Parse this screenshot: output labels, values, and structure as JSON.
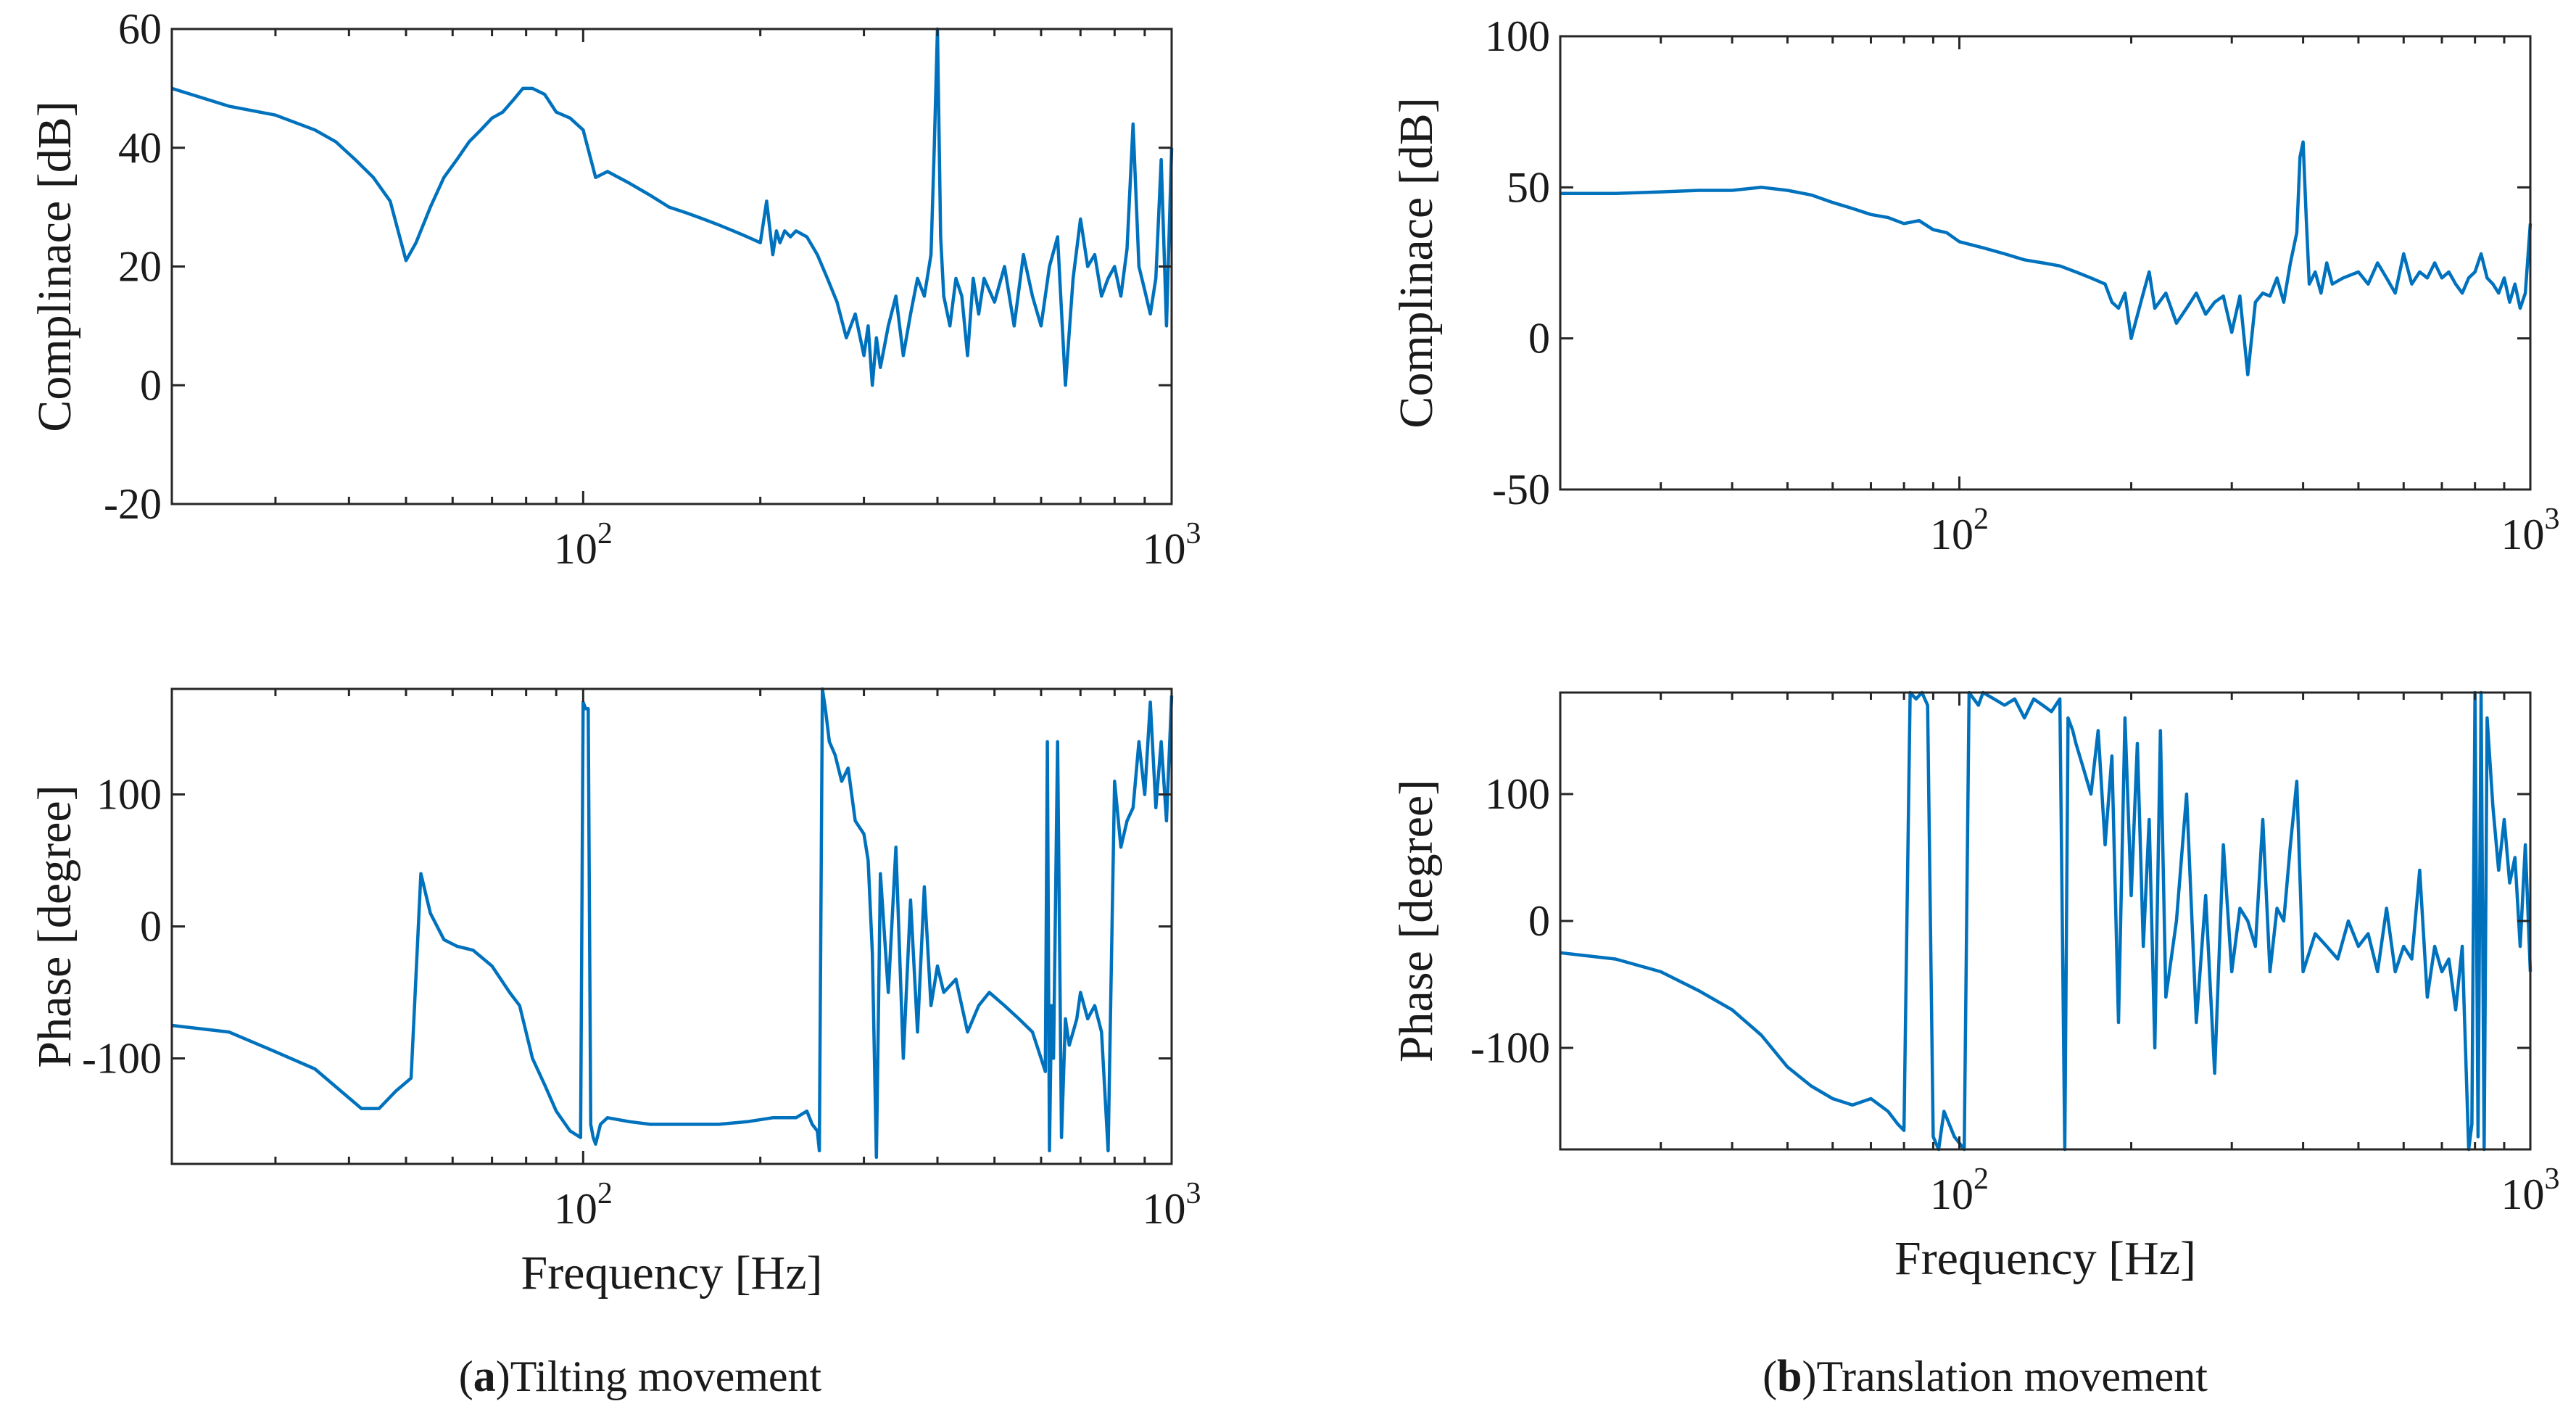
{
  "captions": [
    {
      "letter": "a",
      "text": "Tilting movement"
    },
    {
      "letter": "b",
      "text": "Translation movement"
    }
  ],
  "line_color": "#0072BD",
  "chart_data": [
    {
      "type": "line",
      "panel": "a",
      "row": "magnitude",
      "xscale": "log",
      "xlim": [
        20,
        1000
      ],
      "ylim": [
        -20,
        60
      ],
      "xlabel": "",
      "ylabel": "Complinace [dB]",
      "yticks": [
        -20,
        0,
        20,
        40,
        60
      ],
      "xticklabels": [
        {
          "base": "10",
          "exp": "2",
          "value": 100
        },
        {
          "base": "10",
          "exp": "3",
          "value": 1000
        }
      ],
      "series": [
        {
          "x": [
            20,
            25,
            30,
            35,
            38,
            41,
            44,
            47,
            50,
            52,
            55,
            58,
            61,
            64,
            67,
            70,
            73,
            76,
            79,
            82,
            86,
            90,
            95,
            100,
            105,
            110,
            120,
            130,
            140,
            150,
            160,
            170,
            180,
            190,
            200,
            205,
            210,
            213,
            216,
            220,
            225,
            230,
            240,
            250,
            260,
            270,
            280,
            290,
            300,
            305,
            310,
            315,
            320,
            330,
            340,
            350,
            360,
            370,
            380,
            390,
            395,
            400,
            405,
            410,
            420,
            430,
            440,
            450,
            460,
            470,
            480,
            500,
            520,
            540,
            560,
            580,
            600,
            620,
            640,
            660,
            680,
            700,
            720,
            740,
            760,
            780,
            800,
            820,
            840,
            860,
            880,
            900,
            920,
            940,
            960,
            980,
            1000
          ],
          "y": [
            50,
            47,
            45.5,
            43,
            41,
            38,
            35,
            31,
            21,
            24,
            30,
            35,
            38,
            41,
            43,
            45,
            46,
            48,
            50,
            50,
            49,
            46,
            45,
            43,
            35,
            36,
            34,
            32,
            30,
            29,
            28,
            27,
            26,
            25,
            24,
            31,
            22,
            26,
            24,
            26,
            25,
            26,
            25,
            22,
            18,
            14,
            8,
            12,
            5,
            10,
            0,
            8,
            3,
            10,
            15,
            5,
            12,
            18,
            15,
            22,
            40,
            60,
            25,
            15,
            10,
            18,
            15,
            5,
            18,
            12,
            18,
            14,
            20,
            10,
            22,
            15,
            10,
            20,
            25,
            0,
            18,
            28,
            20,
            22,
            15,
            18,
            20,
            15,
            23,
            44,
            20,
            16,
            12,
            18,
            38,
            10,
            40
          ]
        }
      ]
    },
    {
      "type": "line",
      "panel": "a",
      "row": "phase",
      "xscale": "log",
      "xlim": [
        20,
        1000
      ],
      "ylim": [
        -180,
        180
      ],
      "xlabel": "Frequency [Hz]",
      "ylabel": "Phase [degree]",
      "yticks": [
        -100,
        0,
        100
      ],
      "xticklabels": [
        {
          "base": "10",
          "exp": "2",
          "value": 100
        },
        {
          "base": "10",
          "exp": "3",
          "value": 1000
        }
      ],
      "series": [
        {
          "x": [
            20,
            25,
            30,
            35,
            40,
            42,
            45,
            48,
            51,
            53,
            55,
            58,
            61,
            65,
            70,
            75,
            78,
            82,
            86,
            90,
            95,
            99,
            100,
            101,
            102,
            103,
            104,
            105,
            107,
            110,
            120,
            130,
            150,
            170,
            190,
            210,
            230,
            240,
            245,
            250,
            252,
            255,
            258,
            262,
            268,
            275,
            282,
            290,
            300,
            305,
            310,
            315,
            320,
            330,
            340,
            350,
            360,
            370,
            380,
            390,
            400,
            410,
            430,
            450,
            470,
            490,
            520,
            550,
            580,
            600,
            610,
            615,
            620,
            625,
            630,
            640,
            650,
            660,
            670,
            680,
            690,
            700,
            720,
            740,
            760,
            780,
            800,
            820,
            840,
            860,
            880,
            900,
            920,
            940,
            960,
            980,
            1000
          ],
          "y": [
            -75,
            -80,
            -95,
            -108,
            -130,
            -138,
            -138,
            -125,
            -115,
            40,
            10,
            -10,
            -15,
            -18,
            -30,
            -50,
            -60,
            -100,
            -120,
            -140,
            -155,
            -160,
            170,
            165,
            165,
            -150,
            -160,
            -165,
            -150,
            -145,
            -148,
            -150,
            -150,
            -150,
            -148,
            -145,
            -145,
            -140,
            -150,
            -155,
            -170,
            180,
            165,
            140,
            130,
            110,
            120,
            80,
            70,
            50,
            -20,
            -175,
            40,
            -50,
            60,
            -100,
            20,
            -80,
            30,
            -60,
            -30,
            -50,
            -40,
            -80,
            -60,
            -50,
            -60,
            -70,
            -80,
            -100,
            -110,
            140,
            -170,
            -60,
            -100,
            140,
            -160,
            -70,
            -90,
            -80,
            -70,
            -50,
            -70,
            -60,
            -80,
            -170,
            110,
            60,
            80,
            90,
            140,
            100,
            170,
            90,
            140,
            80,
            175
          ]
        }
      ]
    },
    {
      "type": "line",
      "panel": "b",
      "row": "magnitude",
      "xscale": "log",
      "xlim": [
        20,
        1000
      ],
      "ylim": [
        -50,
        100
      ],
      "xlabel": "",
      "ylabel": "Complinace [dB]",
      "yticks": [
        -50,
        0,
        50,
        100
      ],
      "xticklabels": [
        {
          "base": "10",
          "exp": "2",
          "value": 100
        },
        {
          "base": "10",
          "exp": "3",
          "value": 1000
        }
      ],
      "series": [
        {
          "x": [
            20,
            25,
            30,
            35,
            40,
            45,
            50,
            55,
            60,
            65,
            70,
            75,
            80,
            85,
            90,
            95,
            100,
            110,
            120,
            130,
            140,
            150,
            160,
            170,
            180,
            185,
            190,
            195,
            200,
            210,
            215,
            220,
            230,
            240,
            250,
            260,
            270,
            280,
            290,
            300,
            310,
            320,
            330,
            340,
            350,
            360,
            370,
            380,
            390,
            395,
            400,
            405,
            410,
            420,
            430,
            440,
            450,
            470,
            500,
            520,
            540,
            560,
            580,
            600,
            620,
            640,
            660,
            680,
            700,
            720,
            740,
            760,
            780,
            800,
            820,
            840,
            860,
            880,
            900,
            920,
            940,
            960,
            980,
            1000
          ],
          "y": [
            48,
            48,
            48.5,
            49,
            49,
            50,
            49,
            47.5,
            45,
            43,
            41,
            40,
            38,
            39,
            36,
            35,
            32,
            30,
            28,
            26,
            25,
            24,
            22,
            20,
            18,
            12,
            10,
            15,
            0,
            15,
            22,
            10,
            15,
            5,
            10,
            15,
            8,
            12,
            14,
            2,
            14,
            -12,
            12,
            15,
            14,
            20,
            12,
            25,
            35,
            60,
            65,
            40,
            18,
            22,
            15,
            25,
            18,
            20,
            22,
            18,
            25,
            20,
            15,
            28,
            18,
            22,
            20,
            25,
            20,
            22,
            18,
            15,
            20,
            22,
            28,
            20,
            18,
            15,
            20,
            12,
            18,
            10,
            15,
            38
          ]
        }
      ]
    },
    {
      "type": "line",
      "panel": "b",
      "row": "phase",
      "xscale": "log",
      "xlim": [
        20,
        1000
      ],
      "ylim": [
        -180,
        180
      ],
      "xlabel": "Frequency [Hz]",
      "ylabel": "Phase [degree]",
      "yticks": [
        -100,
        0,
        100
      ],
      "xticklabels": [
        {
          "base": "10",
          "exp": "2",
          "value": 100
        },
        {
          "base": "10",
          "exp": "3",
          "value": 1000
        }
      ],
      "series": [
        {
          "x": [
            20,
            25,
            30,
            35,
            40,
            45,
            50,
            55,
            60,
            65,
            70,
            75,
            78,
            80,
            82,
            84,
            86,
            88,
            90,
            92,
            94,
            96,
            98,
            100,
            102,
            104,
            106,
            108,
            110,
            115,
            120,
            125,
            130,
            135,
            140,
            145,
            150,
            153,
            155,
            158,
            160,
            165,
            170,
            175,
            180,
            185,
            190,
            195,
            200,
            205,
            210,
            215,
            220,
            225,
            230,
            240,
            250,
            260,
            270,
            280,
            290,
            300,
            310,
            320,
            330,
            340,
            350,
            360,
            370,
            380,
            390,
            400,
            420,
            440,
            460,
            480,
            500,
            520,
            540,
            560,
            580,
            600,
            620,
            640,
            660,
            680,
            700,
            720,
            740,
            760,
            780,
            790,
            800,
            810,
            820,
            830,
            840,
            860,
            880,
            900,
            920,
            940,
            960,
            980,
            1000
          ],
          "y": [
            -25,
            -30,
            -40,
            -55,
            -70,
            -90,
            -115,
            -130,
            -140,
            -145,
            -140,
            -150,
            -160,
            -165,
            180,
            175,
            180,
            170,
            -170,
            -180,
            -150,
            -160,
            -170,
            -175,
            -180,
            180,
            175,
            170,
            180,
            175,
            170,
            175,
            160,
            175,
            170,
            165,
            175,
            -180,
            160,
            150,
            140,
            120,
            100,
            150,
            60,
            130,
            -80,
            160,
            20,
            140,
            -20,
            80,
            -100,
            150,
            -60,
            0,
            100,
            -80,
            20,
            -120,
            60,
            -40,
            10,
            0,
            -20,
            80,
            -40,
            10,
            0,
            60,
            110,
            -40,
            -10,
            -20,
            -30,
            0,
            -20,
            -10,
            -40,
            10,
            -40,
            -20,
            -30,
            40,
            -60,
            -20,
            -40,
            -30,
            -70,
            -20,
            -180,
            -160,
            180,
            -170,
            180,
            -180,
            160,
            90,
            40,
            80,
            30,
            50,
            -20,
            60,
            -40
          ]
        }
      ]
    }
  ]
}
